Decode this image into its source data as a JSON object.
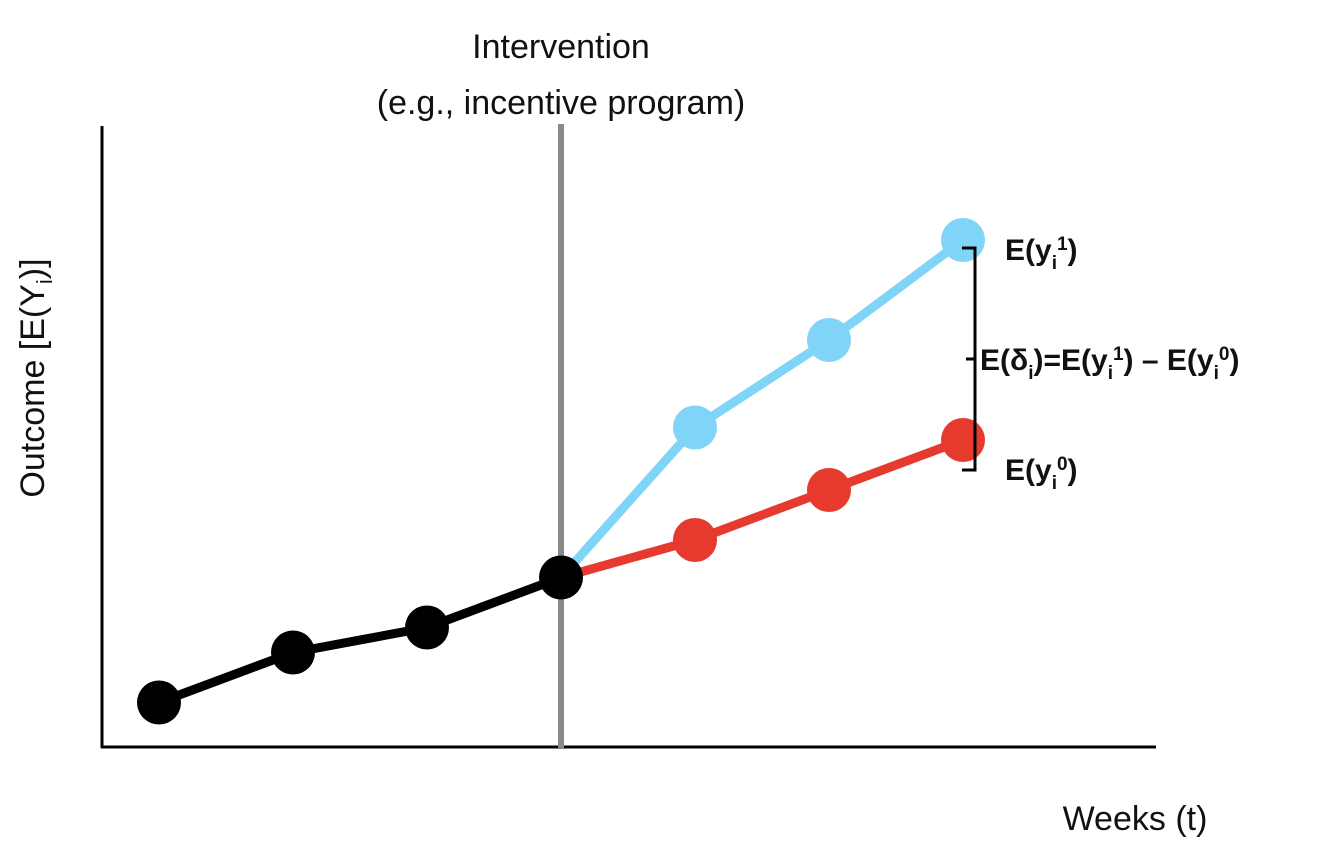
{
  "intervention": {
    "line1": "Intervention",
    "line2": "(e.g., incentive program)"
  },
  "axes": {
    "ylabel": {
      "main": "Outcome [E(Y",
      "sub": "i",
      "close": ")]"
    },
    "xlabel": "Weeks (t)"
  },
  "labels": {
    "treated": {
      "pre": "E(y",
      "sub": "i",
      "sup": "1",
      "post": ")"
    },
    "control": {
      "pre": "E(y",
      "sub": "i",
      "sup": "0",
      "post": ")"
    },
    "effect": {
      "p1": "E(δ",
      "s1": "i",
      "p2": ")=E(y",
      "s2": "i",
      "u2": "1",
      "p3": ") – E(y",
      "s3": "i",
      "u3": "0",
      "p4": ")"
    }
  },
  "colors": {
    "baseline": "#000000",
    "treated": "#7fd4f8",
    "control": "#e53a2d",
    "intervention_line": "#8a8a8a",
    "axis": "#000000"
  },
  "chart_data": {
    "type": "line",
    "x": [
      1,
      2,
      3,
      4,
      5,
      6,
      7
    ],
    "intervention_x": 4,
    "ylim": [
      0,
      10
    ],
    "series": [
      {
        "key": "baseline",
        "x": [
          1,
          2,
          3,
          4
        ],
        "values": [
          0.6,
          1.4,
          1.8,
          2.6
        ]
      },
      {
        "key": "treated",
        "x": [
          4,
          5,
          6,
          7
        ],
        "values": [
          2.6,
          5.0,
          6.4,
          8.0
        ]
      },
      {
        "key": "control",
        "x": [
          4,
          5,
          6,
          7
        ],
        "values": [
          2.6,
          3.2,
          4.0,
          4.8
        ]
      }
    ]
  }
}
